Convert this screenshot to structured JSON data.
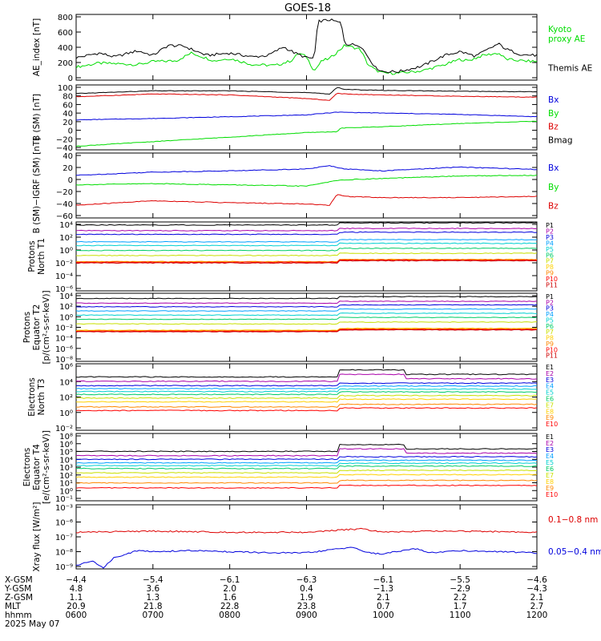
{
  "title": "GOES-18",
  "colors": {
    "black": "#000000",
    "green": "#00dd00",
    "red": "#dd0000",
    "blue": "#0000dd",
    "P": [
      "#000000",
      "#aa00aa",
      "#0000dd",
      "#00a0ff",
      "#00d0d0",
      "#00cc66",
      "#c8e000",
      "#ffd000",
      "#ff8800",
      "#ff0000",
      "#cc0000"
    ],
    "E": [
      "#000000",
      "#aa00aa",
      "#0000dd",
      "#00a0ff",
      "#00d0d0",
      "#00cc66",
      "#c8e000",
      "#ffd000",
      "#ff8800",
      "#ff0000"
    ]
  },
  "chart_data": [
    {
      "type": "line",
      "panel": "ae",
      "ylabel": "AE_index [nT]",
      "yticks": [
        "800",
        "600",
        "400",
        "200",
        "0"
      ],
      "ylim": [
        -50,
        800
      ],
      "series": [
        {
          "name": "Kyoto proxy AE",
          "color": "#00dd00",
          "label_lines": [
            "Kyoto",
            "proxy AE"
          ],
          "x": [
            6.0,
            6.3,
            6.6,
            6.8,
            7.0,
            7.3,
            7.5,
            7.8,
            8.0,
            8.3,
            8.6,
            8.8,
            8.9,
            9.0,
            9.1,
            9.2,
            9.3,
            9.5,
            9.7,
            9.8,
            9.9,
            10.0,
            10.2,
            10.5,
            10.8,
            11.0,
            11.1,
            11.3,
            11.5,
            11.6,
            11.8,
            12.0
          ],
          "y": [
            120,
            170,
            160,
            150,
            190,
            200,
            300,
            200,
            230,
            150,
            140,
            200,
            300,
            250,
            70,
            200,
            230,
            400,
            350,
            150,
            80,
            40,
            40,
            70,
            150,
            220,
            200,
            270,
            300,
            220,
            200,
            190
          ]
        },
        {
          "name": "Themis AE",
          "color": "#000000",
          "label_lines": [
            "Themis AE"
          ],
          "x": [
            6.0,
            6.3,
            6.5,
            6.8,
            7.0,
            7.2,
            7.4,
            7.7,
            8.0,
            8.3,
            8.5,
            8.7,
            8.85,
            9.0,
            9.1,
            9.15,
            9.3,
            9.45,
            9.5,
            9.7,
            9.9,
            10.0,
            10.2,
            10.5,
            10.8,
            11.0,
            11.2,
            11.5,
            11.6,
            11.8,
            12.0
          ],
          "y": [
            240,
            300,
            250,
            330,
            270,
            400,
            390,
            270,
            300,
            250,
            270,
            380,
            300,
            240,
            230,
            710,
            730,
            690,
            420,
            400,
            110,
            60,
            60,
            130,
            270,
            320,
            260,
            420,
            350,
            280,
            270
          ]
        }
      ]
    },
    {
      "type": "line",
      "panel": "b_sm",
      "ylabel": "B (SM) [nT]",
      "yticks": [
        "100",
        "80",
        "60",
        "40",
        "20",
        "0",
        "−20",
        "−40"
      ],
      "ylim": [
        -43,
        100
      ],
      "series": [
        {
          "name": "Bx",
          "color": "#0000dd",
          "x": [
            6.0,
            7.0,
            8.0,
            9.0,
            9.4,
            10.0,
            11.0,
            12.0
          ],
          "y": [
            23,
            26,
            30,
            34,
            40,
            38,
            35,
            30
          ]
        },
        {
          "name": "By",
          "color": "#00dd00",
          "x": [
            6.0,
            7.0,
            8.0,
            9.0,
            9.4,
            9.45,
            10.0,
            11.0,
            12.0
          ],
          "y": [
            -35,
            -25,
            -15,
            -5,
            -3,
            5,
            8,
            15,
            20
          ]
        },
        {
          "name": "Bz",
          "color": "#dd0000",
          "x": [
            6.0,
            7.0,
            8.0,
            9.0,
            9.3,
            9.4,
            9.5,
            10.0,
            11.0,
            12.0
          ],
          "y": [
            74,
            80,
            78,
            70,
            66,
            82,
            80,
            78,
            75,
            73
          ]
        },
        {
          "name": "Bmag",
          "color": "#000000",
          "x": [
            6.0,
            7.0,
            8.0,
            9.0,
            9.3,
            9.4,
            9.5,
            10.0,
            11.0,
            12.0
          ],
          "y": [
            81,
            87,
            87,
            83,
            80,
            95,
            90,
            88,
            86,
            85
          ]
        }
      ]
    },
    {
      "type": "line",
      "panel": "b_igrf",
      "ylabel": "B (SM)−IGRF (SM) [nT]",
      "yticks": [
        "40",
        "20",
        "0",
        "−20",
        "−40",
        "−60"
      ],
      "ylim": [
        -62,
        40
      ],
      "series": [
        {
          "name": "Bx",
          "color": "#0000dd",
          "x": [
            6.0,
            7.0,
            8.0,
            9.0,
            9.3,
            9.5,
            10.0,
            11.0,
            12.0
          ],
          "y": [
            5,
            10,
            12,
            15,
            20,
            15,
            12,
            18,
            14
          ]
        },
        {
          "name": "By",
          "color": "#00dd00",
          "x": [
            6.0,
            7.0,
            8.0,
            9.0,
            9.3,
            9.5,
            10.0,
            11.0,
            12.0
          ],
          "y": [
            -10,
            -8,
            -10,
            -12,
            -5,
            -2,
            0,
            4,
            5
          ]
        },
        {
          "name": "Bz",
          "color": "#dd0000",
          "x": [
            6.0,
            7.0,
            8.0,
            9.0,
            9.3,
            9.4,
            9.5,
            10.0,
            11.0,
            12.0
          ],
          "y": [
            -42,
            -35,
            -38,
            -40,
            -42,
            -25,
            -28,
            -30,
            -30,
            -28
          ]
        }
      ]
    },
    {
      "type": "line",
      "panel": "protons_t1",
      "log": true,
      "ylabel_lines": [
        "Protons",
        "North T1"
      ],
      "yticks": [
        "10⁴",
        "10²",
        "10⁰",
        "10⁻²",
        "10⁻⁴",
        "10⁻⁶"
      ],
      "ylim": [
        -6.5,
        4.6
      ],
      "channels": [
        "P1",
        "P2",
        "P3",
        "P4",
        "P5",
        "P6",
        "P7",
        "P8",
        "P9",
        "P10",
        "P11"
      ],
      "levels": [
        4.1,
        3.2,
        2.6,
        1.4,
        0.8,
        0.0,
        -0.8,
        -1.8,
        -1.8,
        -1.9,
        -2.0
      ]
    },
    {
      "type": "line",
      "panel": "protons_t2",
      "log": true,
      "ylabel_lines": [
        "Protons",
        "Equator T2",
        "[p/(cm²-s-sr-keV)]"
      ],
      "yticks": [
        "10⁴",
        "10²",
        "10⁰",
        "10⁻²",
        "10⁻⁴",
        "10⁻⁶",
        "10⁻⁸"
      ],
      "ylim": [
        -8.5,
        4.6
      ],
      "channels": [
        "P1",
        "P2",
        "P3",
        "P4",
        "P5",
        "P6",
        "P7",
        "P8",
        "P9",
        "P10",
        "P11"
      ],
      "levels": [
        3.6,
        2.7,
        2.0,
        1.2,
        0.4,
        -0.4,
        -1.3,
        -2.5,
        -2.6,
        -2.7,
        -2.8
      ]
    },
    {
      "type": "line",
      "panel": "electrons_t3",
      "log": true,
      "ylabel_lines": [
        "Electrons",
        "North T3"
      ],
      "yticks": [
        "10⁶",
        "10⁴",
        "10²",
        "10⁰",
        "10⁻²"
      ],
      "ylim": [
        -2.8,
        6.3
      ],
      "channels": [
        "E1",
        "E2",
        "E3",
        "E4",
        "E5",
        "E6",
        "E7",
        "E8",
        "E9",
        "E10"
      ],
      "levels": [
        4.5,
        3.9,
        3.3,
        2.9,
        2.5,
        2.1,
        1.6,
        1.1,
        0.4,
        -0.1
      ]
    },
    {
      "type": "line",
      "panel": "electrons_t4",
      "log": true,
      "ylabel_lines": [
        "Electrons",
        "Equator T4",
        "[e/(cm²-s-sr-keV)]"
      ],
      "yticks": [
        "10⁸",
        "10⁶",
        "10⁵",
        "10⁴",
        "10³",
        "10²",
        "10¹",
        "10⁰",
        "10⁻¹"
      ],
      "ylim": [
        -1.3,
        8.1
      ],
      "channels": [
        "E1",
        "E2",
        "E3",
        "E4",
        "E5",
        "E6",
        "E7",
        "E8",
        "E9",
        "E10"
      ],
      "levels": [
        5.6,
        5.0,
        4.5,
        4.0,
        3.6,
        3.2,
        2.6,
        2.0,
        1.2,
        0.5
      ]
    },
    {
      "type": "line",
      "panel": "xray",
      "log": true,
      "ylabel": "Xray flux [W/m²]",
      "yticks": [
        "10⁻³",
        "10⁻⁶",
        "10⁻⁷",
        "10⁻⁸",
        "10⁻⁹"
      ],
      "ylim": [
        -9.3,
        -3.7
      ],
      "series": [
        {
          "name": "0.1−0.8 nm",
          "color": "#dd0000",
          "x": [
            6.0,
            7.0,
            8.0,
            9.0,
            9.7,
            10.0,
            10.5,
            11.0,
            12.0
          ],
          "y": [
            -6.1,
            -6.0,
            -6.1,
            -6.1,
            -5.8,
            -6.1,
            -6.0,
            -6.0,
            -6.1
          ]
        },
        {
          "name": "0.05−0.4 nm",
          "color": "#0000dd",
          "x": [
            6.0,
            6.2,
            6.35,
            6.5,
            6.8,
            7.0,
            7.5,
            8.0,
            8.5,
            9.0,
            9.6,
            9.8,
            10.0,
            10.4,
            10.6,
            11.0,
            11.5,
            12.0
          ],
          "y": [
            -9.0,
            -8.6,
            -9.2,
            -8.3,
            -7.7,
            -7.8,
            -7.7,
            -7.8,
            -7.9,
            -7.9,
            -7.4,
            -7.9,
            -8.0,
            -7.5,
            -7.9,
            -7.7,
            -7.8,
            -7.9
          ]
        }
      ]
    }
  ],
  "axis_table": {
    "rows": [
      {
        "label": "X-GSM",
        "values": [
          "−4.4",
          "−5.4",
          "−6.1",
          "−6.3",
          "−6.1",
          "−5.5",
          "−4.6"
        ]
      },
      {
        "label": "Y-GSM",
        "values": [
          "4.8",
          "3.6",
          "2.0",
          "0.4",
          "−1.3",
          "−2.9",
          "−4.3"
        ]
      },
      {
        "label": "Z-GSM",
        "values": [
          "1.1",
          "1.3",
          "1.6",
          "1.9",
          "2.1",
          "2.2",
          "2.1"
        ]
      },
      {
        "label": "MLT",
        "values": [
          "20.9",
          "21.8",
          "22.8",
          "23.8",
          "0.7",
          "1.7",
          "2.7"
        ]
      },
      {
        "label": "hhmm",
        "values": [
          "0600",
          "0700",
          "0800",
          "0900",
          "1000",
          "1100",
          "1200"
        ]
      }
    ],
    "date": "2025 May 07"
  }
}
